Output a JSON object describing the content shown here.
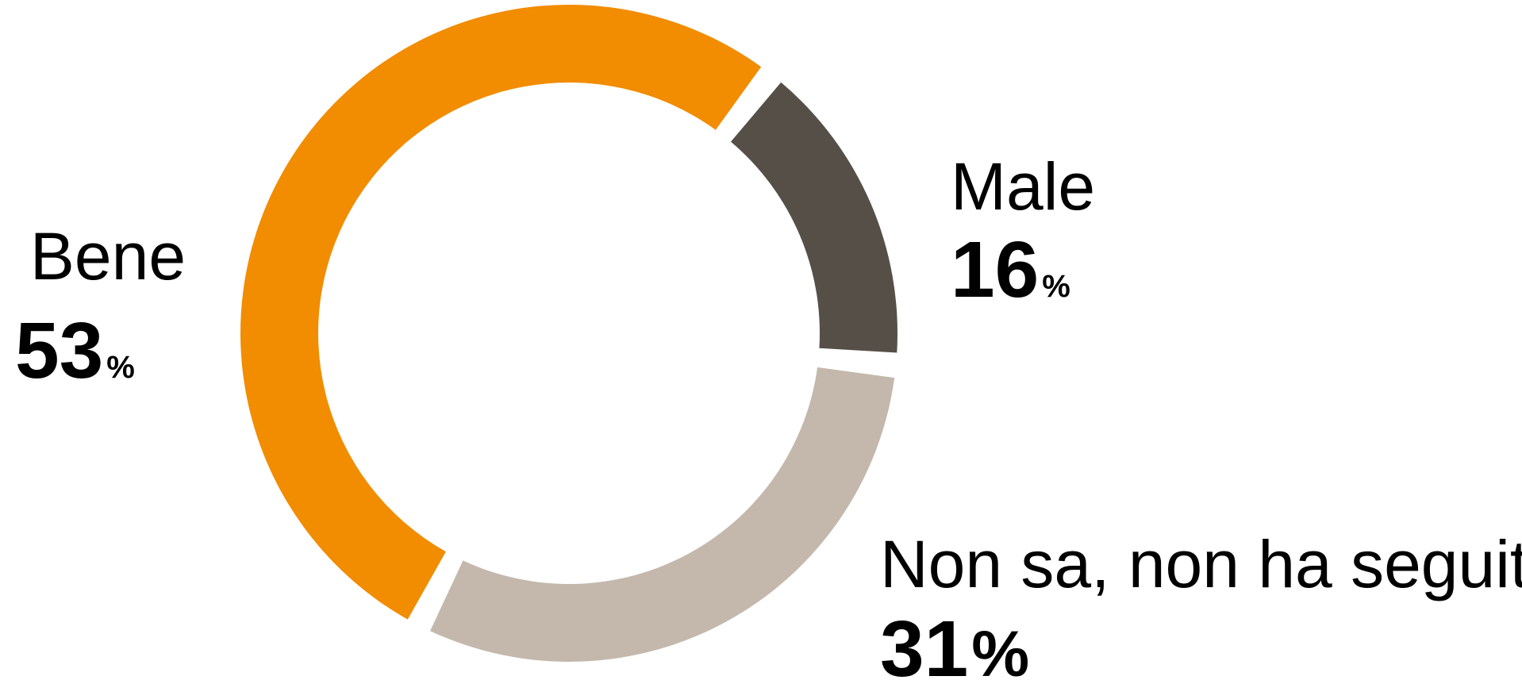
{
  "chart_data": {
    "type": "donut",
    "categories": [
      "Bene",
      "Male",
      "Non sa, non ha seguito"
    ],
    "values": [
      53,
      16,
      31
    ],
    "unit": "%",
    "colors": [
      "#f28c00",
      "#554f48",
      "#c4b8ac"
    ]
  }
}
